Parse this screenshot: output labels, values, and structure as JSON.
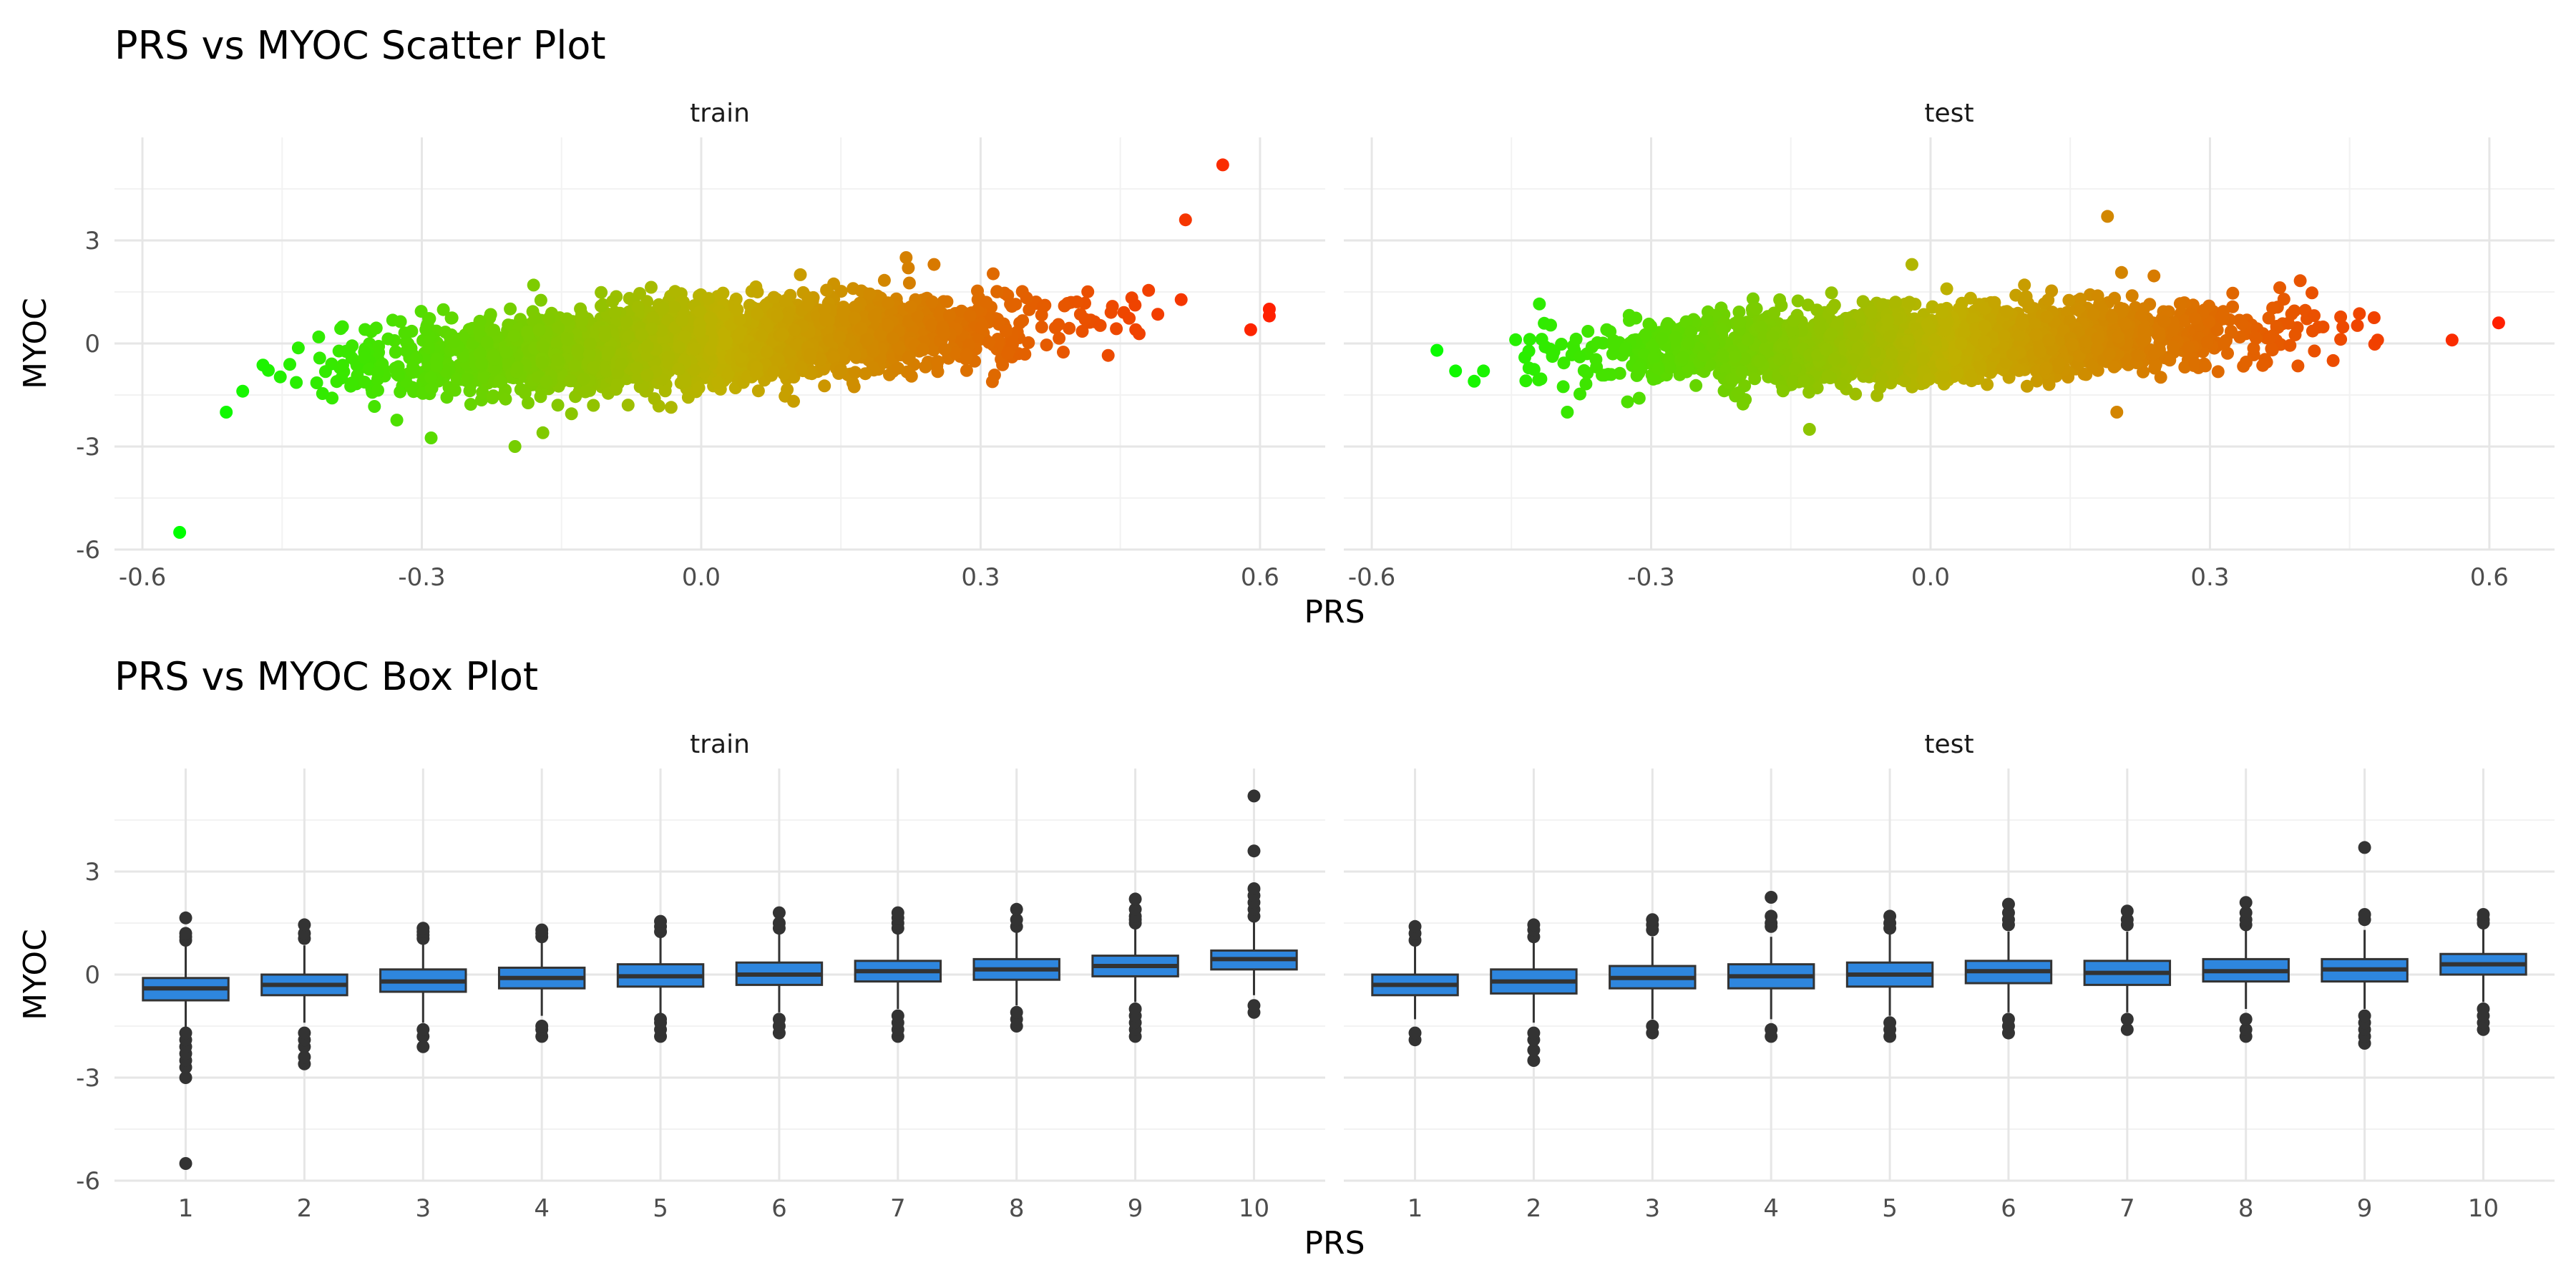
{
  "chart_data": [
    {
      "type": "scatter",
      "title": "PRS vs MYOC Scatter Plot",
      "xlabel": "PRS",
      "ylabel": "MYOC",
      "xlim": [
        -0.63,
        0.67
      ],
      "ylim": [
        -6,
        6
      ],
      "x_ticks": [
        "-0.6",
        "-0.3",
        "0.0",
        "0.3",
        "0.6"
      ],
      "y_ticks": [
        "-6",
        "-3",
        "0",
        "3"
      ],
      "grid": true,
      "color_scale": {
        "low": "#00ff00",
        "mid": "#c0b000",
        "high": "#ff2000"
      },
      "panels": [
        {
          "label": "train",
          "bulk": {
            "x_range": [
              -0.5,
              0.55
            ],
            "slope": 1.65,
            "spread": 0.55,
            "n": 3200
          },
          "points": [
            {
              "x": -0.56,
              "y": -5.5
            },
            {
              "x": -0.51,
              "y": -2.0
            },
            {
              "x": -0.29,
              "y": -2.75
            },
            {
              "x": -0.2,
              "y": -3.0
            },
            {
              "x": -0.17,
              "y": -2.6
            },
            {
              "x": -0.18,
              "y": 1.7
            },
            {
              "x": 0.22,
              "y": 2.5
            },
            {
              "x": 0.25,
              "y": 2.3
            },
            {
              "x": 0.52,
              "y": 3.6
            },
            {
              "x": 0.56,
              "y": 5.2
            },
            {
              "x": 0.59,
              "y": 0.4
            },
            {
              "x": 0.61,
              "y": 1.0
            },
            {
              "x": 0.61,
              "y": 0.8
            }
          ]
        },
        {
          "label": "test",
          "bulk": {
            "x_range": [
              -0.45,
              0.5
            ],
            "slope": 0.85,
            "spread": 0.5,
            "n": 2600
          },
          "points": [
            {
              "x": -0.53,
              "y": -0.2
            },
            {
              "x": -0.51,
              "y": -0.8
            },
            {
              "x": -0.49,
              "y": -1.1
            },
            {
              "x": -0.48,
              "y": -0.8
            },
            {
              "x": -0.42,
              "y": 1.15
            },
            {
              "x": -0.39,
              "y": -2.0
            },
            {
              "x": -0.13,
              "y": -2.5
            },
            {
              "x": -0.02,
              "y": 2.3
            },
            {
              "x": 0.19,
              "y": 3.7
            },
            {
              "x": 0.2,
              "y": -2.0
            },
            {
              "x": 0.48,
              "y": 0.1
            },
            {
              "x": 0.56,
              "y": 0.1
            },
            {
              "x": 0.61,
              "y": 0.6
            }
          ]
        }
      ]
    },
    {
      "type": "box",
      "title": "PRS vs MYOC Box Plot",
      "xlabel": "PRS",
      "ylabel": "MYOC",
      "categories": [
        "1",
        "2",
        "3",
        "4",
        "5",
        "6",
        "7",
        "8",
        "9",
        "10"
      ],
      "ylim": [
        -6,
        6
      ],
      "y_ticks": [
        "-6",
        "-3",
        "0",
        "3"
      ],
      "grid": true,
      "box_color": "#2e86de",
      "panels": [
        {
          "label": "train",
          "boxes": [
            {
              "q1": -0.75,
              "median": -0.4,
              "q3": -0.1,
              "lo": -1.55,
              "hi": 0.85,
              "outliers": [
                -5.5,
                -3.0,
                -2.7,
                -2.5,
                -2.3,
                -2.1,
                -1.9,
                -1.7,
                1.0,
                1.1,
                1.2,
                1.65
              ]
            },
            {
              "q1": -0.6,
              "median": -0.3,
              "q3": 0.0,
              "lo": -1.4,
              "hi": 0.85,
              "outliers": [
                -2.6,
                -2.4,
                -2.1,
                -1.9,
                -1.7,
                1.05,
                1.2,
                1.45
              ]
            },
            {
              "q1": -0.5,
              "median": -0.2,
              "q3": 0.15,
              "lo": -1.4,
              "hi": 0.9,
              "outliers": [
                -2.1,
                -1.8,
                -1.6,
                1.05,
                1.15,
                1.25,
                1.35
              ]
            },
            {
              "q1": -0.4,
              "median": -0.1,
              "q3": 0.2,
              "lo": -1.2,
              "hi": 1.0,
              "outliers": [
                -1.8,
                -1.6,
                -1.5,
                1.1,
                1.2,
                1.3
              ]
            },
            {
              "q1": -0.35,
              "median": -0.05,
              "q3": 0.3,
              "lo": -1.2,
              "hi": 1.1,
              "outliers": [
                -1.8,
                -1.6,
                -1.4,
                -1.3,
                1.25,
                1.4,
                1.55
              ]
            },
            {
              "q1": -0.3,
              "median": 0.0,
              "q3": 0.35,
              "lo": -1.1,
              "hi": 1.2,
              "outliers": [
                -1.7,
                -1.5,
                -1.3,
                1.35,
                1.5,
                1.8
              ]
            },
            {
              "q1": -0.2,
              "median": 0.1,
              "q3": 0.4,
              "lo": -1.0,
              "hi": 1.25,
              "outliers": [
                -1.8,
                -1.6,
                -1.4,
                -1.2,
                1.35,
                1.5,
                1.65,
                1.8
              ]
            },
            {
              "q1": -0.15,
              "median": 0.15,
              "q3": 0.45,
              "lo": -0.9,
              "hi": 1.3,
              "outliers": [
                -1.5,
                -1.3,
                -1.1,
                1.4,
                1.6,
                1.9
              ]
            },
            {
              "q1": -0.05,
              "median": 0.25,
              "q3": 0.55,
              "lo": -0.8,
              "hi": 1.4,
              "outliers": [
                -1.8,
                -1.6,
                -1.4,
                -1.2,
                -1.0,
                1.5,
                1.6,
                1.7,
                1.9,
                2.2
              ]
            },
            {
              "q1": 0.15,
              "median": 0.45,
              "q3": 0.7,
              "lo": -0.6,
              "hi": 1.55,
              "outliers": [
                -1.1,
                -0.9,
                1.7,
                1.9,
                2.1,
                2.3,
                2.5,
                3.6,
                5.2
              ]
            }
          ]
        },
        {
          "label": "test",
          "boxes": [
            {
              "q1": -0.6,
              "median": -0.3,
              "q3": 0.0,
              "lo": -1.3,
              "hi": 0.9,
              "outliers": [
                -1.9,
                -1.7,
                1.0,
                1.2,
                1.4
              ]
            },
            {
              "q1": -0.55,
              "median": -0.2,
              "q3": 0.15,
              "lo": -1.4,
              "hi": 0.95,
              "outliers": [
                -2.5,
                -2.2,
                -1.9,
                -1.7,
                1.1,
                1.3,
                1.45
              ]
            },
            {
              "q1": -0.4,
              "median": -0.1,
              "q3": 0.25,
              "lo": -1.3,
              "hi": 1.1,
              "outliers": [
                -1.7,
                -1.5,
                1.3,
                1.45,
                1.6
              ]
            },
            {
              "q1": -0.4,
              "median": -0.05,
              "q3": 0.3,
              "lo": -1.3,
              "hi": 1.1,
              "outliers": [
                -1.8,
                -1.6,
                1.4,
                1.5,
                1.7,
                2.25
              ]
            },
            {
              "q1": -0.35,
              "median": 0.0,
              "q3": 0.35,
              "lo": -1.2,
              "hi": 1.2,
              "outliers": [
                -1.8,
                -1.6,
                -1.4,
                1.35,
                1.5,
                1.7
              ]
            },
            {
              "q1": -0.25,
              "median": 0.1,
              "q3": 0.4,
              "lo": -1.1,
              "hi": 1.25,
              "outliers": [
                -1.7,
                -1.5,
                -1.3,
                1.45,
                1.6,
                1.8,
                2.05
              ]
            },
            {
              "q1": -0.3,
              "median": 0.05,
              "q3": 0.4,
              "lo": -1.1,
              "hi": 1.25,
              "outliers": [
                -1.6,
                -1.3,
                1.45,
                1.6,
                1.85
              ]
            },
            {
              "q1": -0.2,
              "median": 0.1,
              "q3": 0.45,
              "lo": -1.0,
              "hi": 1.3,
              "outliers": [
                -1.8,
                -1.6,
                -1.3,
                1.45,
                1.6,
                1.8,
                2.1
              ]
            },
            {
              "q1": -0.2,
              "median": 0.15,
              "q3": 0.45,
              "lo": -1.0,
              "hi": 1.3,
              "outliers": [
                -2.0,
                -1.8,
                -1.6,
                -1.4,
                -1.2,
                1.6,
                1.75,
                3.7
              ]
            },
            {
              "q1": 0.0,
              "median": 0.3,
              "q3": 0.6,
              "lo": -0.8,
              "hi": 1.4,
              "outliers": [
                -1.6,
                -1.4,
                -1.2,
                -1.0,
                1.5,
                1.6,
                1.75
              ]
            }
          ]
        }
      ]
    }
  ]
}
